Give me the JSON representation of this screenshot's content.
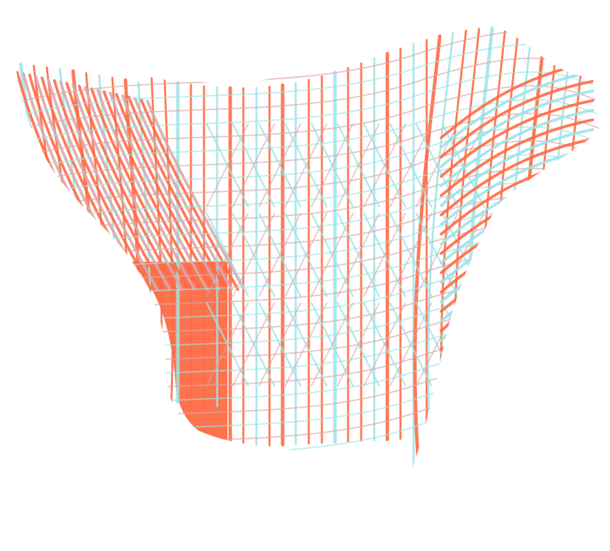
{
  "scene": {
    "subject": "wireframe-shell-structure",
    "colors": {
      "background": "#ffffff",
      "primary": "#ff6a45",
      "secondary": "#9fe3e6",
      "muted": "#d9a9aa"
    }
  }
}
